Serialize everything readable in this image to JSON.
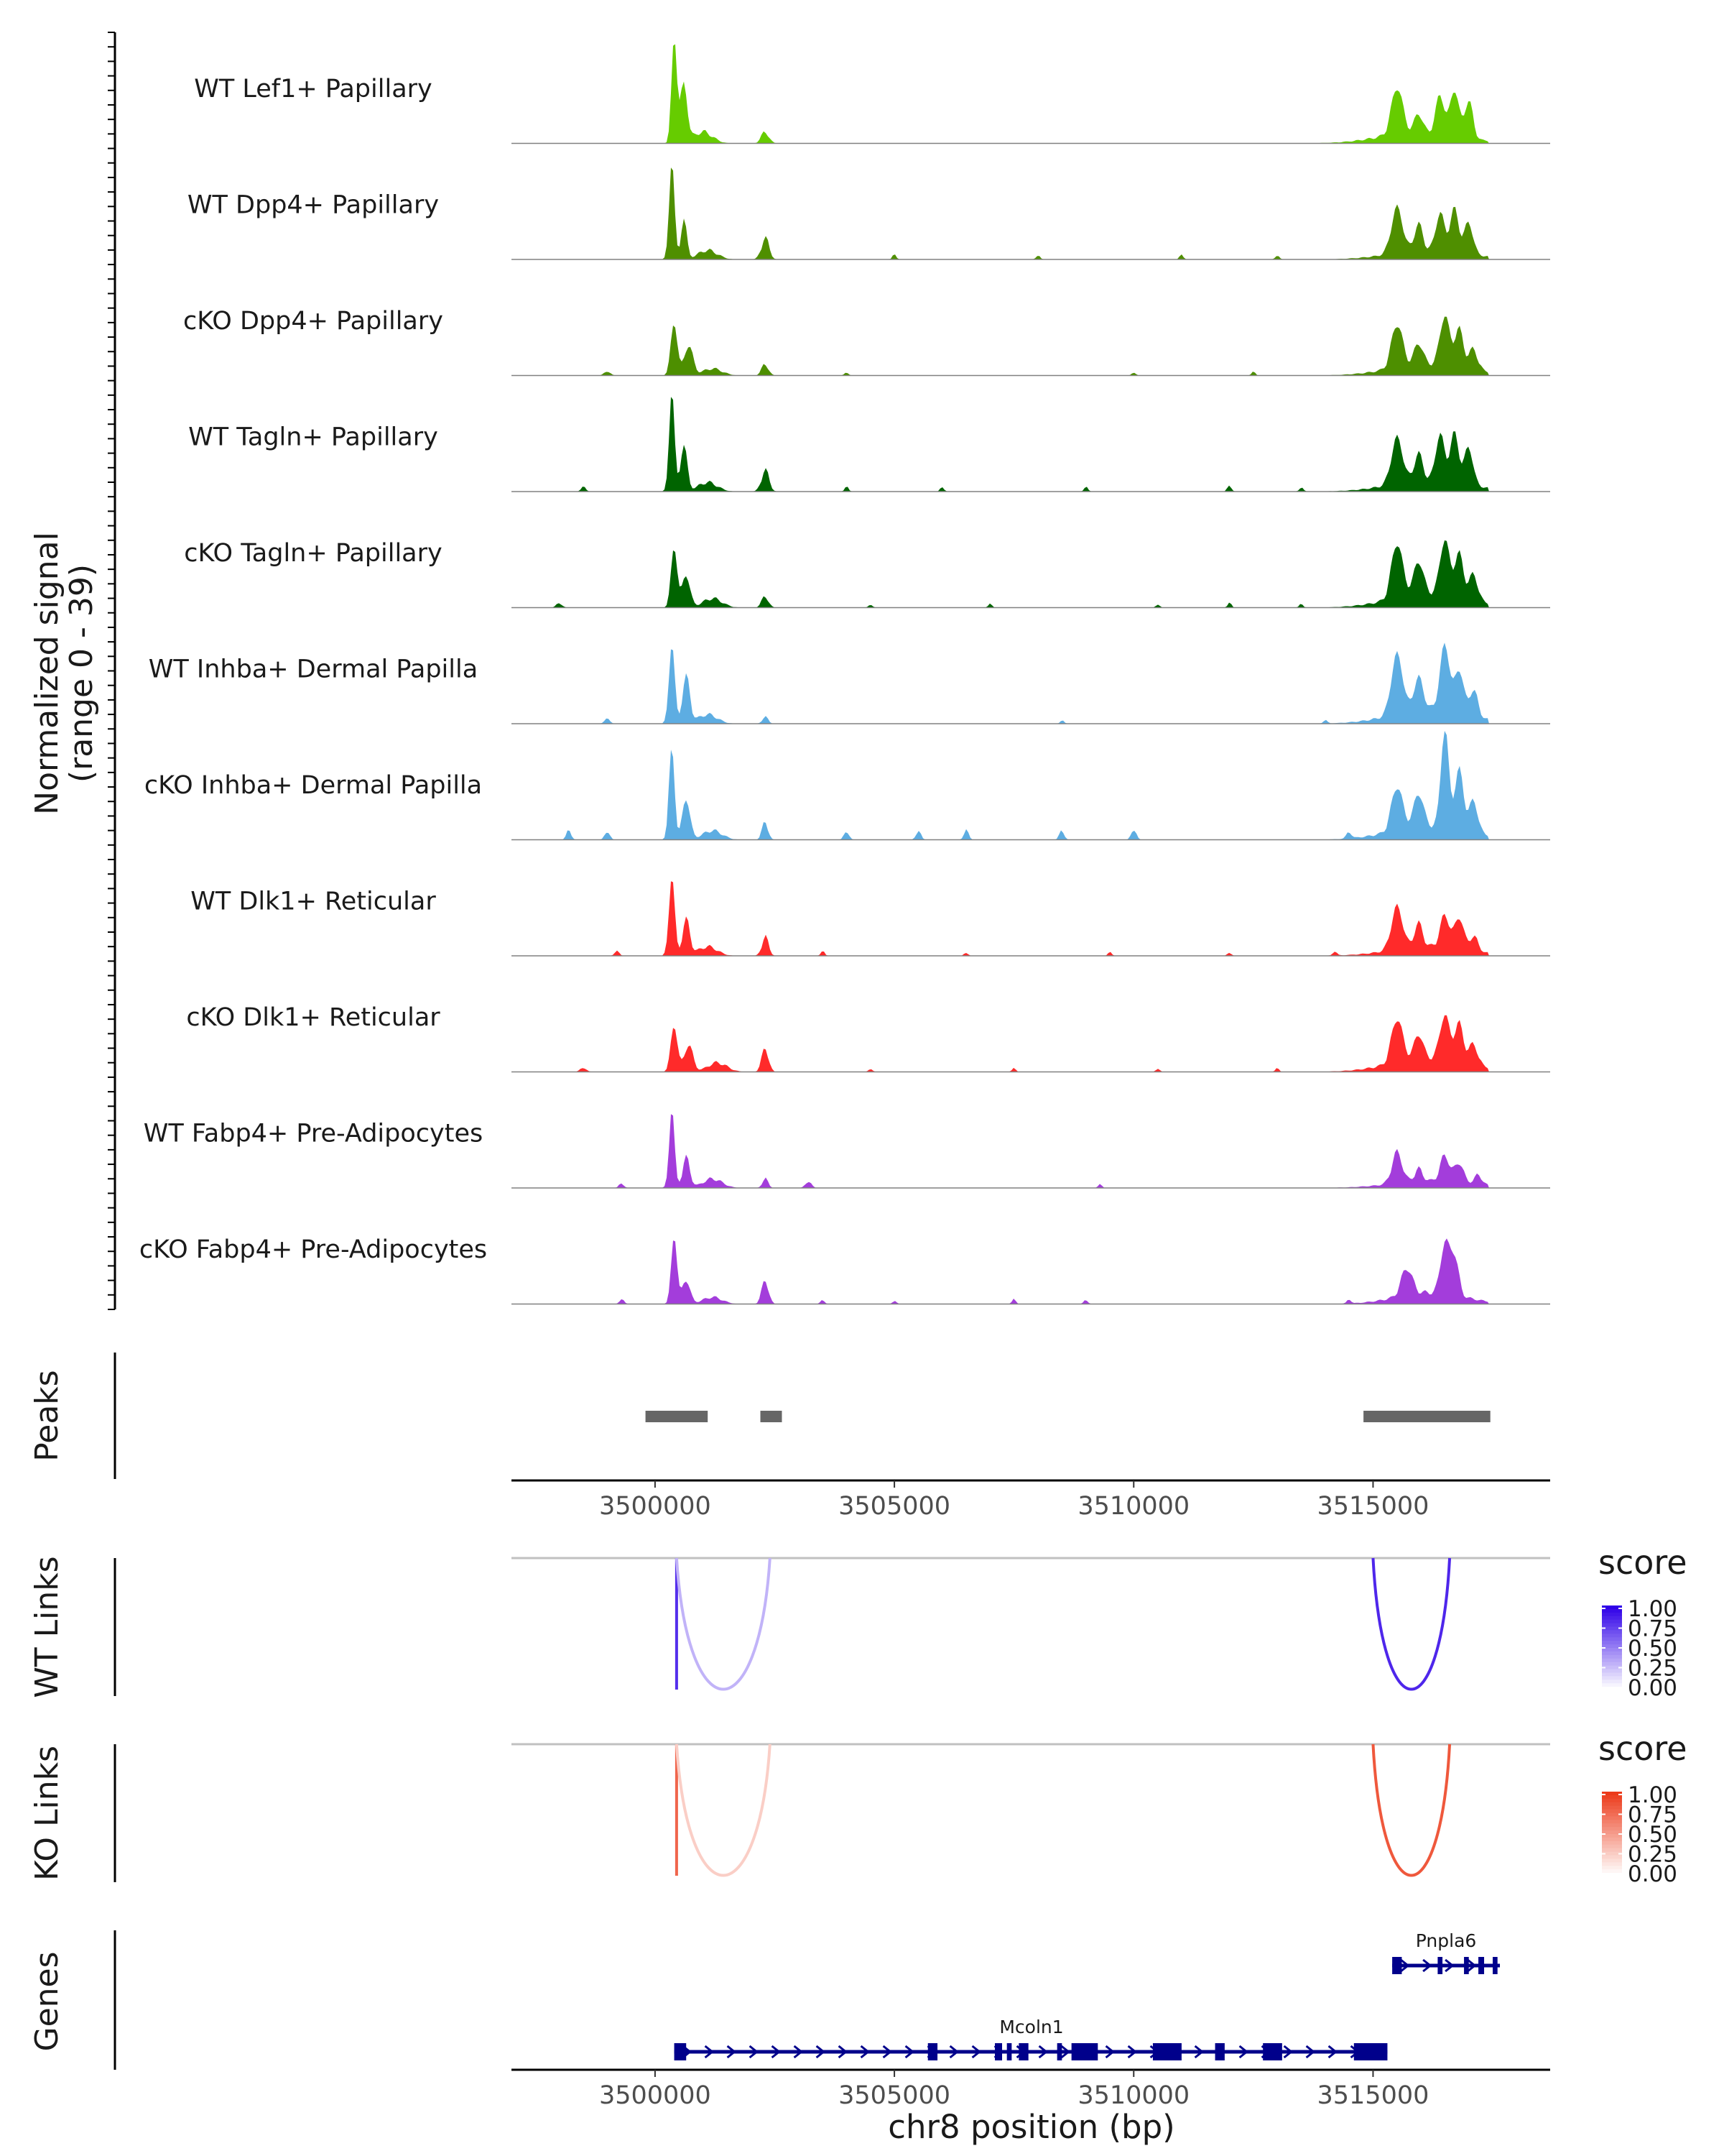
{
  "chart_data": {
    "type": "coverage-track",
    "region": {
      "chrom": "chr8",
      "start": 3497000,
      "end": 3518700
    },
    "coverage": {
      "ylabel": "Normalized signal",
      "ylabel_range": "(range 0 - 39)",
      "ylim": [
        0,
        39
      ],
      "tracks": [
        {
          "label": "WT Lef1+ Papillary",
          "color": "#66cc00",
          "peaks": [
            [
              3500400,
              39,
              55
            ],
            [
              3500600,
              22,
              75
            ],
            [
              3501000,
              5,
              200
            ],
            [
              3502300,
              5,
              80
            ],
            [
              3515500,
              17,
              120
            ],
            [
              3515950,
              7,
              80
            ],
            [
              3516400,
              14,
              90
            ],
            [
              3516700,
              17,
              90
            ],
            [
              3517000,
              14,
              90
            ],
            [
              3516000,
              5,
              800
            ]
          ]
        },
        {
          "label": "WT Dpp4+ Papillary",
          "color": "#4f8f00",
          "peaks": [
            [
              3500350,
              37,
              55
            ],
            [
              3500600,
              16,
              60
            ],
            [
              3501100,
              4,
              200
            ],
            [
              3502300,
              9,
              80
            ],
            [
              3515500,
              17,
              120
            ],
            [
              3515950,
              10,
              90
            ],
            [
              3516400,
              14,
              90
            ],
            [
              3516700,
              16,
              90
            ],
            [
              3517000,
              12,
              90
            ],
            [
              3516200,
              4,
              800
            ],
            [
              3505000,
              2,
              40
            ],
            [
              3508000,
              2,
              40
            ],
            [
              3511000,
              2,
              40
            ],
            [
              3513000,
              2,
              40
            ]
          ]
        },
        {
          "label": "cKO Dpp4+ Papillary",
          "color": "#4d8f00",
          "peaks": [
            [
              3500400,
              20,
              70
            ],
            [
              3500700,
              12,
              90
            ],
            [
              3501200,
              3,
              200
            ],
            [
              3502300,
              5,
              70
            ],
            [
              3515500,
              16,
              120
            ],
            [
              3515950,
              8,
              90
            ],
            [
              3516500,
              18,
              100
            ],
            [
              3516800,
              14,
              90
            ],
            [
              3517100,
              8,
              90
            ],
            [
              3516200,
              5,
              800
            ],
            [
              3499000,
              2,
              60
            ],
            [
              3504000,
              1.5,
              40
            ],
            [
              3510000,
              1.5,
              40
            ],
            [
              3512500,
              1.5,
              40
            ]
          ]
        },
        {
          "label": "WT Tagln+ Papillary",
          "color": "#006400",
          "peaks": [
            [
              3500350,
              38,
              55
            ],
            [
              3500600,
              18,
              70
            ],
            [
              3501100,
              4,
              200
            ],
            [
              3502300,
              9,
              80
            ],
            [
              3515500,
              17,
              120
            ],
            [
              3515950,
              10,
              90
            ],
            [
              3516400,
              17,
              90
            ],
            [
              3516700,
              18,
              90
            ],
            [
              3517000,
              14,
              90
            ],
            [
              3516200,
              5,
              800
            ],
            [
              3498500,
              2,
              50
            ],
            [
              3504000,
              2,
              40
            ],
            [
              3506000,
              2,
              40
            ],
            [
              3509000,
              2,
              40
            ],
            [
              3512000,
              3,
              40
            ],
            [
              3513500,
              2,
              40
            ]
          ]
        },
        {
          "label": "cKO Tagln+ Papillary",
          "color": "#006400",
          "peaks": [
            [
              3500400,
              23,
              65
            ],
            [
              3500650,
              13,
              80
            ],
            [
              3501200,
              4,
              200
            ],
            [
              3502300,
              5,
              70
            ],
            [
              3515500,
              20,
              120
            ],
            [
              3515950,
              12,
              100
            ],
            [
              3516500,
              20,
              100
            ],
            [
              3516800,
              16,
              90
            ],
            [
              3517100,
              10,
              90
            ],
            [
              3516200,
              6,
              800
            ],
            [
              3498000,
              2,
              60
            ],
            [
              3504500,
              1.5,
              40
            ],
            [
              3507000,
              1.5,
              40
            ],
            [
              3510500,
              1.5,
              40
            ],
            [
              3512000,
              2,
              40
            ],
            [
              3513500,
              1.5,
              40
            ]
          ]
        },
        {
          "label": "WT Inhba+ Dermal Papilla",
          "color": "#5dade2",
          "peaks": [
            [
              3500350,
              30,
              60
            ],
            [
              3500650,
              18,
              80
            ],
            [
              3501100,
              4,
              200
            ],
            [
              3502300,
              3,
              60
            ],
            [
              3515500,
              22,
              120
            ],
            [
              3515950,
              12,
              100
            ],
            [
              3516500,
              24,
              100
            ],
            [
              3516800,
              16,
              90
            ],
            [
              3517100,
              10,
              90
            ],
            [
              3516200,
              6,
              800
            ],
            [
              3499000,
              2,
              60
            ],
            [
              3508500,
              1.5,
              40
            ],
            [
              3514000,
              1.5,
              40
            ]
          ]
        },
        {
          "label": "cKO Inhba+ Dermal Papilla",
          "color": "#5dade2",
          "peaks": [
            [
              3500350,
              34,
              60
            ],
            [
              3500650,
              16,
              80
            ],
            [
              3501200,
              4,
              200
            ],
            [
              3502300,
              8,
              60
            ],
            [
              3515500,
              16,
              120
            ],
            [
              3515950,
              12,
              100
            ],
            [
              3516500,
              36,
              80
            ],
            [
              3516800,
              22,
              90
            ],
            [
              3517100,
              12,
              90
            ],
            [
              3516200,
              6,
              800
            ],
            [
              3498200,
              4,
              50
            ],
            [
              3499000,
              4,
              50
            ],
            [
              3504000,
              4,
              50
            ],
            [
              3505500,
              4,
              50
            ],
            [
              3506500,
              4,
              50
            ],
            [
              3508500,
              4,
              50
            ],
            [
              3510000,
              5,
              50
            ],
            [
              3514500,
              3,
              50
            ]
          ]
        },
        {
          "label": "WT Dlk1+ Reticular",
          "color": "#ff2a2a",
          "peaks": [
            [
              3500350,
              30,
              60
            ],
            [
              3500650,
              14,
              80
            ],
            [
              3501100,
              4,
              200
            ],
            [
              3502300,
              8,
              70
            ],
            [
              3515500,
              16,
              120
            ],
            [
              3515950,
              9,
              90
            ],
            [
              3516500,
              12,
              100
            ],
            [
              3516800,
              12,
              90
            ],
            [
              3517100,
              6,
              90
            ],
            [
              3516200,
              4,
              800
            ],
            [
              3499200,
              2,
              50
            ],
            [
              3503500,
              2,
              40
            ],
            [
              3506500,
              1.5,
              40
            ],
            [
              3509500,
              1.5,
              40
            ],
            [
              3512000,
              1.5,
              40
            ],
            [
              3514200,
              2,
              40
            ]
          ]
        },
        {
          "label": "cKO Dlk1+ Reticular",
          "color": "#ff2a2a",
          "peaks": [
            [
              3500400,
              18,
              70
            ],
            [
              3500700,
              11,
              90
            ],
            [
              3501300,
              4,
              200
            ],
            [
              3502300,
              10,
              70
            ],
            [
              3515500,
              16,
              120
            ],
            [
              3515950,
              9,
              90
            ],
            [
              3516500,
              16,
              100
            ],
            [
              3516800,
              14,
              90
            ],
            [
              3517100,
              8,
              90
            ],
            [
              3516200,
              6,
              800
            ],
            [
              3498500,
              2,
              60
            ],
            [
              3504500,
              1.5,
              40
            ],
            [
              3507500,
              1.5,
              40
            ],
            [
              3510500,
              1.5,
              40
            ],
            [
              3513000,
              1.5,
              40
            ]
          ]
        },
        {
          "label": "WT Fabp4+ Pre-Adipocytes",
          "color": "#a33ddb",
          "peaks": [
            [
              3500350,
              30,
              55
            ],
            [
              3500650,
              12,
              80
            ],
            [
              3501200,
              4,
              200
            ],
            [
              3502300,
              4,
              60
            ],
            [
              3503200,
              3,
              60
            ],
            [
              3515500,
              12,
              110
            ],
            [
              3515950,
              5,
              90
            ],
            [
              3516500,
              10,
              100
            ],
            [
              3516800,
              8,
              90
            ],
            [
              3517200,
              4,
              90
            ],
            [
              3516200,
              3,
              800
            ],
            [
              3499300,
              2,
              50
            ],
            [
              3509300,
              1.5,
              40
            ]
          ]
        },
        {
          "label": "cKO Fabp4+ Pre-Adipocytes",
          "color": "#a33ddb",
          "peaks": [
            [
              3500400,
              26,
              60
            ],
            [
              3500650,
              10,
              80
            ],
            [
              3501200,
              3,
              200
            ],
            [
              3502300,
              10,
              70
            ],
            [
              3515700,
              10,
              120
            ],
            [
              3516500,
              18,
              90
            ],
            [
              3516700,
              14,
              90
            ],
            [
              3516200,
              5,
              700
            ],
            [
              3499300,
              2,
              50
            ],
            [
              3503500,
              2,
              40
            ],
            [
              3505000,
              1.5,
              40
            ],
            [
              3507500,
              2,
              40
            ],
            [
              3509000,
              2,
              40
            ],
            [
              3514500,
              2,
              40
            ]
          ]
        }
      ]
    },
    "peaks_track": {
      "label": "Peaks",
      "color": "#666666",
      "ranges": [
        [
          3499800,
          3501100
        ],
        [
          3502200,
          3502650
        ],
        [
          3514800,
          3517450
        ]
      ]
    },
    "x_axis": {
      "ticks": [
        3500000,
        3505000,
        3510000,
        3515000
      ],
      "tick_labels": [
        "3500000",
        "3505000",
        "3510000",
        "3515000"
      ],
      "title": "chr8 position (bp)"
    },
    "links": [
      {
        "label": "WT Links",
        "legend_title": "score",
        "scale": [
          "#ffffff",
          "#2f00e8"
        ],
        "legend_ticks": [
          "1.00",
          "0.75",
          "0.50",
          "0.25",
          "0.00"
        ],
        "arcs": [
          {
            "from": 3500450,
            "to": 3500480,
            "score": 0.82
          },
          {
            "from": 3500450,
            "to": 3502400,
            "score": 0.3
          },
          {
            "from": 3515000,
            "to": 3516600,
            "score": 0.85
          }
        ]
      },
      {
        "label": "KO Links",
        "legend_title": "score",
        "scale": [
          "#ffffff",
          "#ec3a1a"
        ],
        "legend_ticks": [
          "1.00",
          "0.75",
          "0.50",
          "0.25",
          "0.00"
        ],
        "arcs": [
          {
            "from": 3500450,
            "to": 3500480,
            "score": 0.78
          },
          {
            "from": 3500450,
            "to": 3502400,
            "score": 0.25
          },
          {
            "from": 3515000,
            "to": 3516600,
            "score": 0.85
          }
        ]
      }
    ],
    "genes": {
      "label": "Genes",
      "color": "#00008b",
      "items": [
        {
          "name": "Pnpla6",
          "start": 3515400,
          "end": 3517650,
          "row": 0,
          "exons": [
            [
              3515400,
              3515600
            ],
            [
              3516350,
              3516450
            ],
            [
              3516900,
              3517000
            ],
            [
              3517200,
              3517320
            ],
            [
              3517500,
              3517600
            ]
          ]
        },
        {
          "name": "Mcoln1",
          "start": 3500400,
          "end": 3515300,
          "row": 1,
          "exons": [
            [
              3500400,
              3500650
            ],
            [
              3505700,
              3505900
            ],
            [
              3507100,
              3507250
            ],
            [
              3507350,
              3507450
            ],
            [
              3507600,
              3507800
            ],
            [
              3508400,
              3508500
            ],
            [
              3508700,
              3509250
            ],
            [
              3510400,
              3511000
            ],
            [
              3511700,
              3511900
            ],
            [
              3512700,
              3513100
            ],
            [
              3514600,
              3515300
            ]
          ]
        }
      ]
    }
  }
}
